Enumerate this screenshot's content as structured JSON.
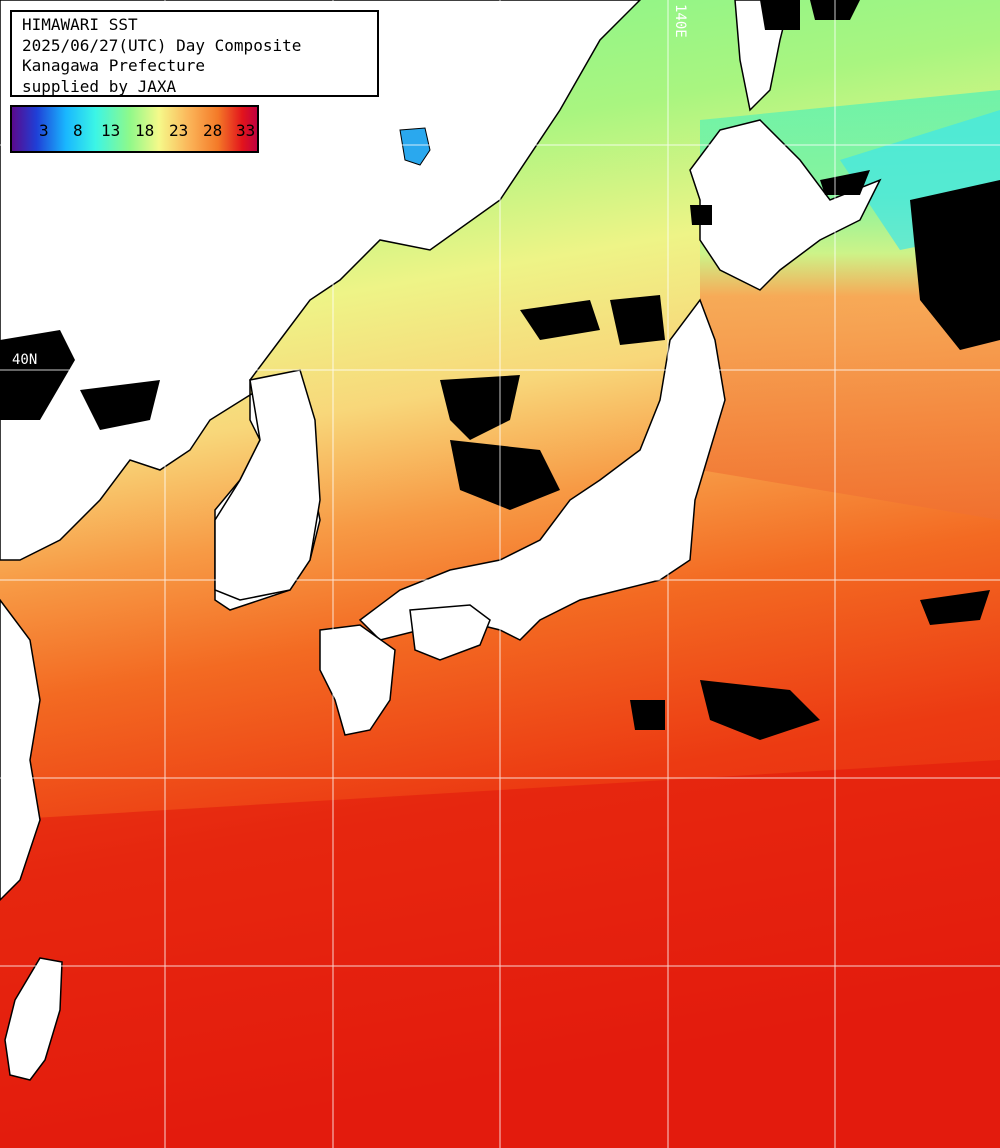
{
  "info": {
    "line1": "HIMAWARI SST",
    "line2": "2025/06/27(UTC) Day Composite",
    "line3": "Kanagawa Prefecture",
    "line4": "supplied by JAXA"
  },
  "legend": {
    "ticks": [
      "3",
      "8",
      "13",
      "18",
      "23",
      "28",
      "33"
    ],
    "colors": [
      "#5a0a8c",
      "#1f3fd6",
      "#19b7ff",
      "#3bf5e6",
      "#8ff98a",
      "#f5f98a",
      "#fbb65a",
      "#f47a28",
      "#e2141c",
      "#c00040"
    ]
  },
  "grid_labels": {
    "longitude": "140E",
    "latitude": "40N"
  }
}
